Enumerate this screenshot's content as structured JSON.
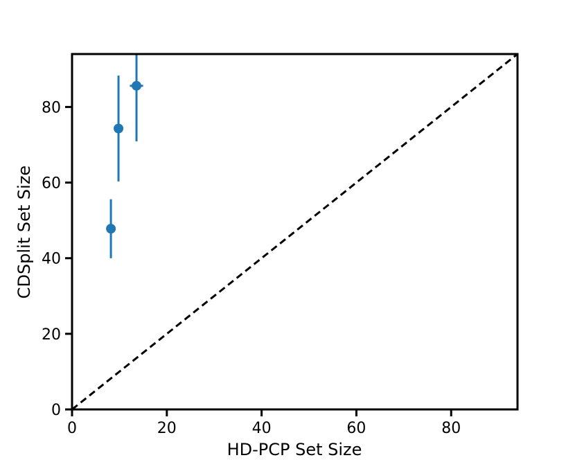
{
  "chart_data": {
    "type": "scatter",
    "title": "",
    "xlabel": "HD-PCP Set Size",
    "ylabel": "CDSplit Set Size",
    "xlim": [
      0,
      94
    ],
    "ylim": [
      0,
      94
    ],
    "xticks": [
      0,
      20,
      40,
      60,
      80
    ],
    "yticks": [
      0,
      20,
      40,
      60,
      80
    ],
    "grid": false,
    "legend": "none",
    "series": [
      {
        "color": "#1f77b4",
        "points": [
          {
            "x": 8.2,
            "y": 47.8,
            "xerr": 0.3,
            "yerr_low": 40.0,
            "yerr_high": 55.6
          },
          {
            "x": 9.8,
            "y": 74.3,
            "xerr": 0.4,
            "yerr_low": 60.3,
            "yerr_high": 88.3
          },
          {
            "x": 13.6,
            "y": 85.6,
            "xerr": 1.4,
            "yerr_low": 70.9,
            "yerr_high": 94.0
          }
        ]
      }
    ],
    "reference_line": {
      "style": "dashed",
      "color": "#000000",
      "from": [
        0,
        0
      ],
      "to": [
        94,
        94
      ]
    }
  }
}
